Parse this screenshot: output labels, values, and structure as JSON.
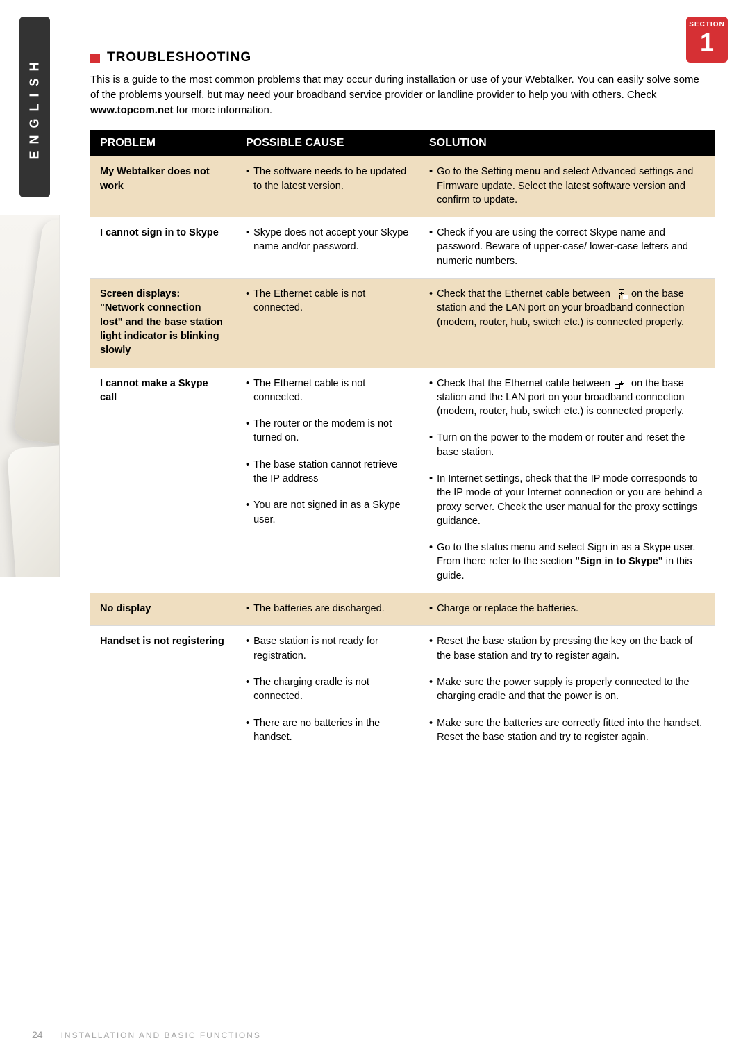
{
  "badge": {
    "label": "SECTION",
    "number": "1"
  },
  "side_tab": "ENGLISH",
  "heading": "TROUBLESHOOTING",
  "intro": "This is a guide to the most common problems that may occur during installation or use of your Webtalker. You can easily solve some of the problems yourself, but may need your broadband service provider or landline provider to help you with others. Check www.topcom.net for more information.",
  "intro_bold": "www.topcom.net",
  "columns": {
    "problem": "PROBLEM",
    "cause": "POSSIBLE CAUSE",
    "solution": "SOLUTION"
  },
  "rows": [
    {
      "band": true,
      "problem": "My Webtalker does not work",
      "causes": [
        "The software needs to be updated to the latest version."
      ],
      "solutions": [
        "Go to the Setting menu and select Advanced settings and Firmware update. Select the latest software version and confirm to update."
      ]
    },
    {
      "band": false,
      "problem": "I cannot sign in to Skype",
      "causes": [
        "Skype does not accept your Skype name and/or password."
      ],
      "solutions": [
        "Check if you are using the correct Skype name and password. Beware of upper-case/ lower-case letters and numeric numbers."
      ]
    },
    {
      "band": true,
      "problem": "Screen displays: \"Network connection lost\" and the base station light indicator is blinking slowly",
      "causes": [
        "The Ethernet cable is not connected."
      ],
      "solutions": [
        "Check that the Ethernet cable between {LAN} on the base station and the LAN port on your broadband connection (modem, router, hub, switch etc.) is connected properly."
      ]
    },
    {
      "band": false,
      "problem": "I cannot make a Skype call",
      "causes": [
        "The Ethernet cable is not connected.",
        "The router or the modem is not turned on.",
        "The base station cannot retrieve the IP address",
        "You are not signed in as a Skype user."
      ],
      "solutions": [
        "Check that the Ethernet cable between {LAN} on the base station and the LAN port on your broadband connection (modem, router, hub, switch etc.) is connected properly.",
        "Turn on the power to the modem or router and reset the base station.",
        "In Internet settings, check that the IP mode corresponds to the IP mode of your Internet connection or you are behind  a proxy server. Check the user manual for the proxy settings guidance.",
        "Go to the status menu and select Sign in as a Skype user. From there refer to the section \"Sign in to Skype\" in this guide."
      ],
      "solution_bold_last": "\"Sign in to Skype\""
    },
    {
      "band": true,
      "problem": "No display",
      "causes": [
        "The batteries are discharged."
      ],
      "solutions": [
        "Charge or replace the batteries."
      ]
    },
    {
      "band": false,
      "problem": "Handset is not registering",
      "causes": [
        "Base station is not ready for registration.",
        "The charging cradle is not connected.",
        "There are no batteries in the handset."
      ],
      "solutions": [
        "Reset the base station by pressing the key on the back of the base station and try to register again.",
        "Make sure the power supply is properly connected to the charging cradle and that the power is on.",
        "Make sure the batteries are correctly fitted into the handset. Reset the base station and try to register again."
      ]
    }
  ],
  "footer": {
    "page": "24",
    "text": "INSTALLATION AND BASIC FUNCTIONS"
  },
  "colors": {
    "accent": "#d63034",
    "band": "#efdec0",
    "header_bg": "#000000",
    "header_fg": "#ffffff",
    "rule": "#dadada",
    "footer_fg": "#a7a7a7"
  }
}
